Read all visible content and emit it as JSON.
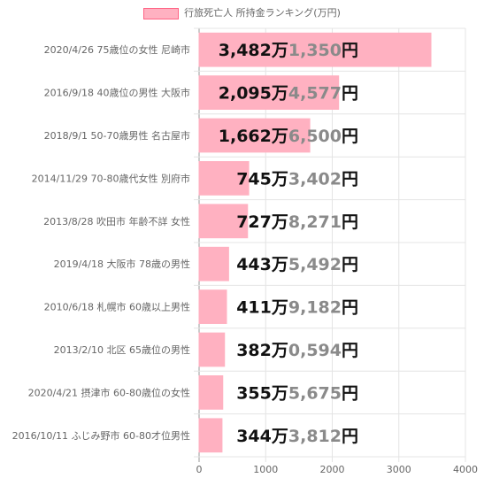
{
  "chart_data": {
    "type": "bar",
    "orientation": "horizontal",
    "legend": "行旅死亡人 所持金ランキング(万円)",
    "legend_position": "top",
    "grid": true,
    "bar_color": "#ffb1c1",
    "bar_border_color": "#ff6384",
    "xlim": [
      0,
      4000
    ],
    "x_ticks": [
      "0",
      "1000",
      "2000",
      "3000",
      "4000"
    ],
    "categories": [
      "2020/4/26 75歳位の女性 尼崎市",
      "2016/9/18 40歳位の男性 大阪市",
      "2018/9/1 50-70歳男性 名古屋市",
      "2014/11/29 70-80歳代女性 別府市",
      "2013/8/28 吹田市 年齢不詳 女性",
      "2019/4/18 大阪市 78歳の男性",
      "2010/6/18 札幌市 60歳以上男性",
      "2013/2/10 北区 65歳位の男性",
      "2020/4/21 摂津市 60-80歳位の女性",
      "2016/10/11 ふじみ野市 60-80才位男性"
    ],
    "values": [
      3482.135,
      2095.4577,
      1662.65,
      745.3402,
      727.8271,
      443.5492,
      411.9182,
      382.0594,
      355.5675,
      344.3812
    ],
    "data_labels": [
      {
        "man": "3,482万",
        "yen": "1,350",
        "unit": "円"
      },
      {
        "man": "2,095万",
        "yen": "4,577",
        "unit": "円"
      },
      {
        "man": "1,662万",
        "yen": "6,500",
        "unit": "円"
      },
      {
        "man": "745万",
        "yen": "3,402",
        "unit": "円"
      },
      {
        "man": "727万",
        "yen": "8,271",
        "unit": "円"
      },
      {
        "man": "443万",
        "yen": "5,492",
        "unit": "円"
      },
      {
        "man": "411万",
        "yen": "9,182",
        "unit": "円"
      },
      {
        "man": "382万",
        "yen": "0,594",
        "unit": "円"
      },
      {
        "man": "355万",
        "yen": "5,675",
        "unit": "円"
      },
      {
        "man": "344万",
        "yen": "3,812",
        "unit": "円"
      }
    ]
  }
}
